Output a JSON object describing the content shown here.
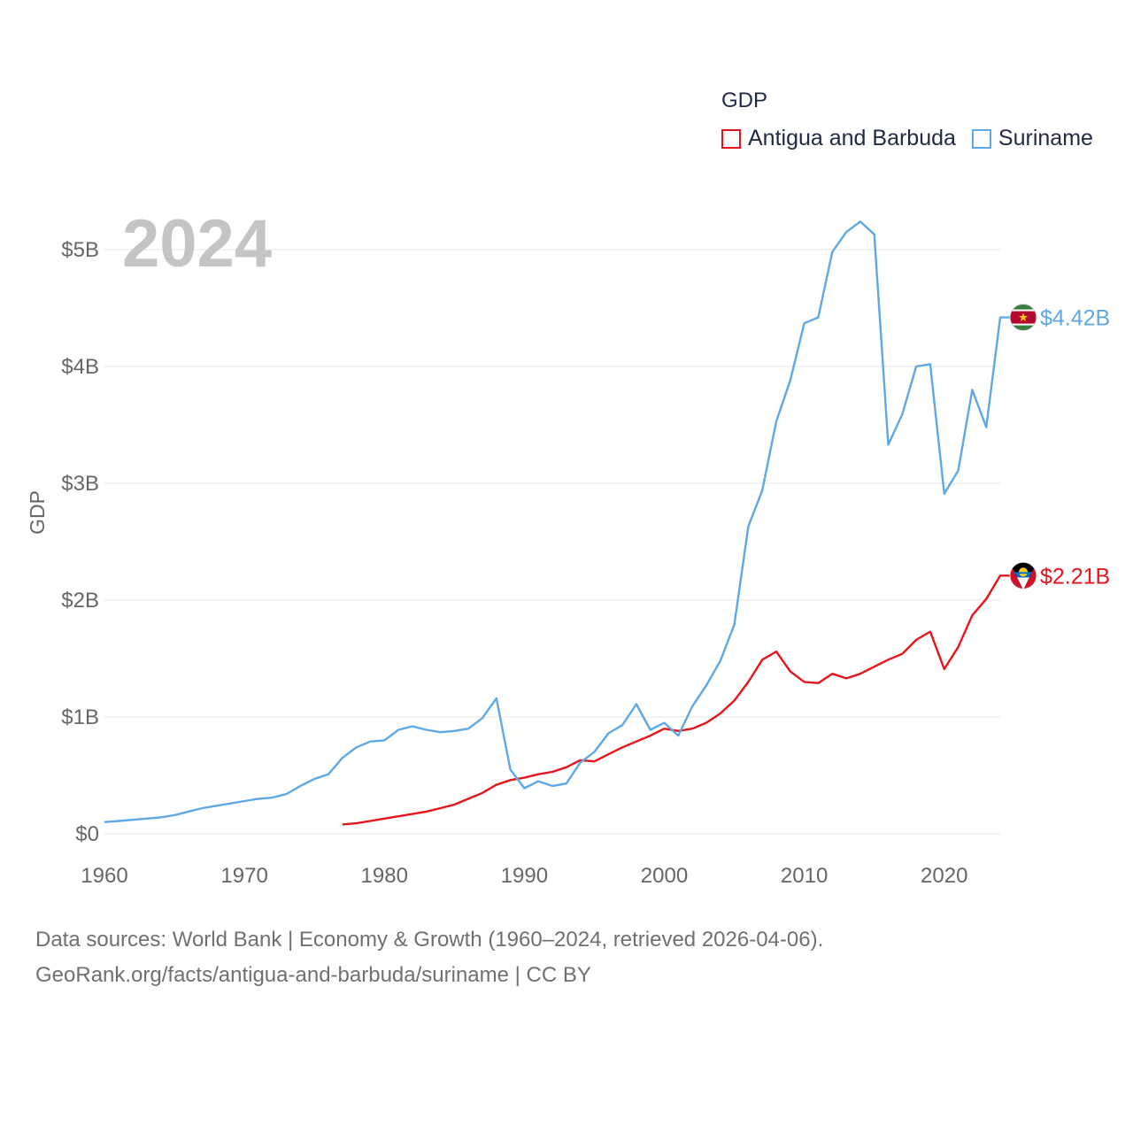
{
  "chart_data": {
    "type": "line",
    "title": "GDP",
    "big_year": "2024",
    "ylabel": "GDP",
    "xlabel": "",
    "xlim": [
      1960,
      2024
    ],
    "ylim": [
      0,
      5.35
    ],
    "y_ticks": [
      0,
      1,
      2,
      3,
      4,
      5
    ],
    "y_tick_labels": [
      "$0",
      "$1B",
      "$2B",
      "$3B",
      "$4B",
      "$5B"
    ],
    "x_ticks": [
      1960,
      1970,
      1980,
      1990,
      2000,
      2010,
      2020
    ],
    "x_tick_labels": [
      "1960",
      "1970",
      "1980",
      "1990",
      "2000",
      "2010",
      "2020"
    ],
    "grid": true,
    "legend_position": "top-right",
    "series": [
      {
        "name": "Antigua and Barbuda",
        "color": "#e8141b",
        "end_label": "$2.21B",
        "flag": "antigua-flag",
        "x": [
          1977,
          1978,
          1979,
          1980,
          1981,
          1982,
          1983,
          1984,
          1985,
          1986,
          1987,
          1988,
          1989,
          1990,
          1991,
          1992,
          1993,
          1994,
          1995,
          1996,
          1997,
          1998,
          1999,
          2000,
          2001,
          2002,
          2003,
          2004,
          2005,
          2006,
          2007,
          2008,
          2009,
          2010,
          2011,
          2012,
          2013,
          2014,
          2015,
          2016,
          2017,
          2018,
          2019,
          2020,
          2021,
          2022,
          2023,
          2024
        ],
        "values": [
          0.08,
          0.09,
          0.11,
          0.13,
          0.15,
          0.17,
          0.19,
          0.22,
          0.25,
          0.3,
          0.35,
          0.42,
          0.46,
          0.48,
          0.51,
          0.53,
          0.57,
          0.63,
          0.62,
          0.68,
          0.74,
          0.79,
          0.84,
          0.9,
          0.88,
          0.9,
          0.95,
          1.03,
          1.14,
          1.3,
          1.49,
          1.56,
          1.39,
          1.3,
          1.29,
          1.37,
          1.33,
          1.37,
          1.43,
          1.49,
          1.54,
          1.66,
          1.73,
          1.41,
          1.6,
          1.87,
          2.01,
          2.21
        ]
      },
      {
        "name": "Suriname",
        "color": "#5ea8e6",
        "end_label": "$4.42B",
        "flag": "suriname-flag",
        "x": [
          1960,
          1961,
          1962,
          1963,
          1964,
          1965,
          1966,
          1967,
          1968,
          1969,
          1970,
          1971,
          1972,
          1973,
          1974,
          1975,
          1976,
          1977,
          1978,
          1979,
          1980,
          1981,
          1982,
          1983,
          1984,
          1985,
          1986,
          1987,
          1988,
          1989,
          1990,
          1991,
          1992,
          1993,
          1994,
          1995,
          1996,
          1997,
          1998,
          1999,
          2000,
          2001,
          2002,
          2003,
          2004,
          2005,
          2006,
          2007,
          2008,
          2009,
          2010,
          2011,
          2012,
          2013,
          2014,
          2015,
          2016,
          2017,
          2018,
          2019,
          2020,
          2021,
          2022,
          2023,
          2024
        ],
        "values": [
          0.1,
          0.11,
          0.12,
          0.13,
          0.14,
          0.16,
          0.19,
          0.22,
          0.24,
          0.26,
          0.28,
          0.3,
          0.31,
          0.34,
          0.41,
          0.47,
          0.51,
          0.65,
          0.74,
          0.79,
          0.8,
          0.89,
          0.92,
          0.89,
          0.87,
          0.88,
          0.9,
          0.99,
          1.16,
          0.55,
          0.39,
          0.45,
          0.41,
          0.43,
          0.61,
          0.7,
          0.86,
          0.93,
          1.11,
          0.89,
          0.95,
          0.84,
          1.09,
          1.27,
          1.48,
          1.79,
          2.63,
          2.94,
          3.53,
          3.88,
          4.37,
          4.42,
          4.98,
          5.15,
          5.24,
          5.13,
          3.33,
          3.59,
          4.0,
          4.02,
          2.91,
          3.11,
          3.8,
          3.48,
          4.42
        ]
      }
    ]
  },
  "legend": {
    "title": "GDP",
    "items": [
      {
        "label": "Antigua and Barbuda",
        "color": "#e8141b"
      },
      {
        "label": "Suriname",
        "color": "#5ea8e6"
      }
    ]
  },
  "footer": {
    "line1": "Data sources: World Bank | Economy & Growth (1960–2024, retrieved 2026-04-06).",
    "line2": "GeoRank.org/facts/antigua-and-barbuda/suriname | CC BY"
  }
}
